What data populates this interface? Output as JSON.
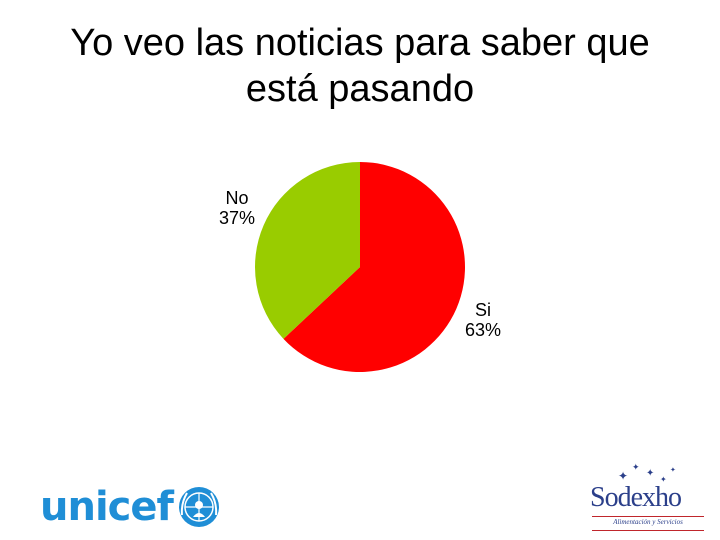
{
  "title": {
    "line1": "Yo veo las noticias para saber que",
    "line2": "está pasando"
  },
  "chart_data": {
    "type": "pie",
    "title": "",
    "slices": [
      {
        "label": "Si",
        "value": 63,
        "value_label": "63%",
        "color": "#ff0000"
      },
      {
        "label": "No",
        "value": 37,
        "value_label": "37%",
        "color": "#99cc00"
      }
    ],
    "start": "12 o'clock",
    "direction": "clockwise",
    "legend": "none"
  },
  "logos": {
    "left": {
      "text": "unicef",
      "color": "#1f8ed6"
    },
    "right": {
      "text": "Sodexho",
      "tagline": "Alimentación y Servicios",
      "color": "#2b3f8a",
      "accent": "#c0262c"
    }
  }
}
